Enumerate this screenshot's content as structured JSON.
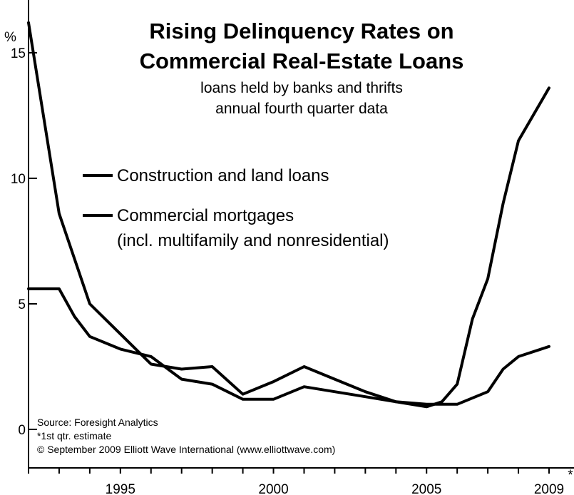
{
  "chart_data": {
    "type": "line",
    "title_line1": "Rising Delinquency Rates on",
    "title_line2": "Commercial Real-Estate Loans",
    "subtitle_line1": "loans held by banks and thrifts",
    "subtitle_line2": "annual fourth quarter data",
    "ylabel": "%",
    "ylim": [
      -1.5,
      16.5
    ],
    "xlim": [
      1992,
      2009.2
    ],
    "y_ticks": [
      0,
      5,
      10,
      15
    ],
    "y_tick_labels": [
      "0",
      "5",
      "10",
      "15"
    ],
    "x_ticks": [
      1992,
      1993,
      1994,
      1995,
      1996,
      1997,
      1998,
      1999,
      2000,
      2001,
      2002,
      2003,
      2004,
      2005,
      2006,
      2007,
      2008,
      2009
    ],
    "x_tick_labels": [
      {
        "value": 1995,
        "label": "1995"
      },
      {
        "value": 2000,
        "label": "2000"
      },
      {
        "value": 2005,
        "label": "2005"
      },
      {
        "value": 2009,
        "label": "2009"
      }
    ],
    "x_last_marker": "*",
    "series": [
      {
        "name": "Construction and land loans",
        "x": [
          1992,
          1993,
          1994,
          1995,
          1996,
          1997,
          1998,
          1999,
          2000,
          2001,
          2002,
          2003,
          2004,
          2005,
          2005.5,
          2006,
          2006.5,
          2007,
          2007.5,
          2008,
          2009
        ],
        "values": [
          16.2,
          8.6,
          5.0,
          3.8,
          2.6,
          2.4,
          2.5,
          1.4,
          1.9,
          2.5,
          2.0,
          1.5,
          1.1,
          0.9,
          1.1,
          1.8,
          4.4,
          6.0,
          9.0,
          11.5,
          13.6
        ]
      },
      {
        "name": "Commercial mortgages",
        "name_line2": "(incl. multifamily and nonresidential)",
        "x": [
          1992,
          1993,
          1993.5,
          1994,
          1995,
          1996,
          1997,
          1998,
          1999,
          2000,
          2001,
          2002,
          2003,
          2004,
          2005,
          2006,
          2007,
          2007.5,
          2008,
          2009
        ],
        "values": [
          5.6,
          5.6,
          4.5,
          3.7,
          3.2,
          2.9,
          2.0,
          1.8,
          1.2,
          1.2,
          1.7,
          1.5,
          1.3,
          1.1,
          1.0,
          1.0,
          1.5,
          2.4,
          2.9,
          3.3
        ]
      }
    ],
    "legend_position": "upper-left",
    "grid": false
  },
  "notes": {
    "source": "Source: Foresight Analytics",
    "footnote": "*1st qtr. estimate",
    "copyright": "© September 2009 Elliott Wave International (www.elliottwave.com)"
  }
}
